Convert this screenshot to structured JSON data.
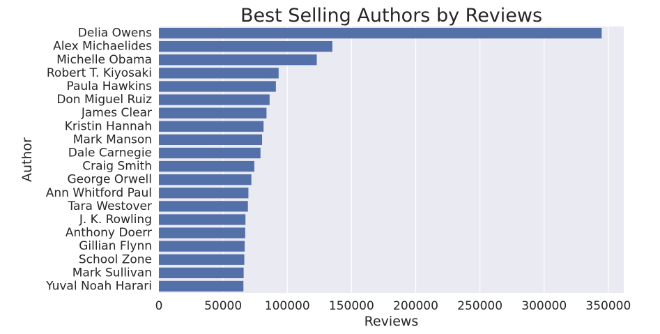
{
  "chart_data": {
    "type": "bar",
    "orientation": "horizontal",
    "title": "Best Selling Authors by Reviews",
    "xlabel": "Reviews",
    "ylabel": "Author",
    "categories": [
      "Delia Owens",
      "Alex Michaelides",
      "Michelle Obama",
      "Robert T. Kiyosaki",
      "Paula Hawkins",
      "Don Miguel Ruiz",
      "James Clear",
      "Kristin Hannah",
      "Mark Manson",
      "Dale Carnegie",
      "Craig Smith",
      "George Orwell",
      "Ann Whitford Paul",
      "Tara Westover",
      "J. K. Rowling",
      "Anthony Doerr",
      "Gillian Flynn",
      "School Zone",
      "Mark Sullivan",
      "Yuval Noah Harari"
    ],
    "values": [
      344811,
      135075,
      122935,
      93250,
      91100,
      86200,
      83800,
      81500,
      80350,
      79100,
      74300,
      72000,
      69700,
      69300,
      67400,
      67200,
      66800,
      66500,
      66000,
      65800
    ],
    "xlim": [
      0,
      362000
    ],
    "xticks": [
      0,
      50000,
      100000,
      150000,
      200000,
      250000,
      300000,
      350000
    ],
    "xtick_labels": [
      "0",
      "50000",
      "100000",
      "150000",
      "200000",
      "250000",
      "300000",
      "350000"
    ],
    "grid": true,
    "colors": {
      "bar": "#5470a8",
      "plot_background": "#eaeaf2",
      "grid": "#ffffff",
      "text": "#262626"
    }
  }
}
